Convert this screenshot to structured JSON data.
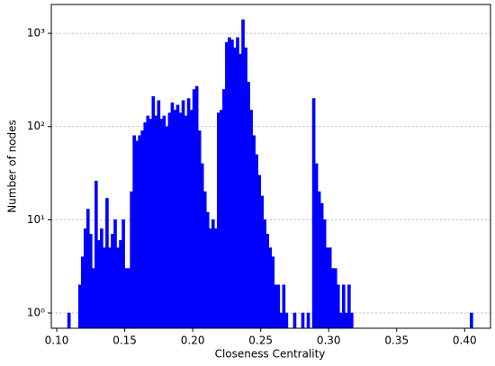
{
  "chart_data": {
    "type": "histogram",
    "xlabel": "Closeness Centrality",
    "ylabel": "Number of nodes",
    "color": "#0000ff",
    "log_y": true,
    "grid": "y-dashed",
    "bins": [
      0.108,
      0.11,
      0.112,
      0.114,
      0.116,
      0.118,
      0.12,
      0.122,
      0.124,
      0.126,
      0.128,
      0.13,
      0.132,
      0.134,
      0.136,
      0.138,
      0.14,
      0.142,
      0.144,
      0.146,
      0.148,
      0.15,
      0.152,
      0.154,
      0.156,
      0.158,
      0.16,
      0.162,
      0.164,
      0.166,
      0.168,
      0.17,
      0.172,
      0.174,
      0.176,
      0.178,
      0.18,
      0.182,
      0.184,
      0.186,
      0.188,
      0.19,
      0.192,
      0.194,
      0.196,
      0.198,
      0.2,
      0.202,
      0.204,
      0.206,
      0.208,
      0.21,
      0.212,
      0.214,
      0.216,
      0.218,
      0.22,
      0.222,
      0.224,
      0.226,
      0.228,
      0.23,
      0.232,
      0.234,
      0.236,
      0.238,
      0.24,
      0.242,
      0.244,
      0.246,
      0.248,
      0.25,
      0.252,
      0.254,
      0.256,
      0.258,
      0.26,
      0.262,
      0.264,
      0.266,
      0.268,
      0.27,
      0.272,
      0.274,
      0.276,
      0.278,
      0.28,
      0.282,
      0.284,
      0.286,
      0.288,
      0.29,
      0.292,
      0.294,
      0.296,
      0.298,
      0.3,
      0.302,
      0.304,
      0.306,
      0.308,
      0.31,
      0.312,
      0.314,
      0.316,
      0.318,
      0.32,
      0.322,
      0.324,
      0.326,
      0.328,
      0.33,
      0.332,
      0.334,
      0.336,
      0.338,
      0.34,
      0.342,
      0.344,
      0.346,
      0.348,
      0.35,
      0.352,
      0.354,
      0.356,
      0.358,
      0.36,
      0.362,
      0.364,
      0.366,
      0.368,
      0.37,
      0.372,
      0.374,
      0.376,
      0.378,
      0.38,
      0.382,
      0.384,
      0.386,
      0.388,
      0.39,
      0.392,
      0.394,
      0.396,
      0.398,
      0.4,
      0.402,
      0.404,
      0.406
    ],
    "counts": [
      1,
      null,
      null,
      null,
      2,
      4,
      8,
      13,
      7,
      3,
      26,
      6,
      8,
      5,
      17,
      5,
      7,
      10,
      5,
      6,
      10,
      3,
      3,
      20,
      80,
      70,
      80,
      90,
      110,
      130,
      120,
      210,
      130,
      190,
      120,
      130,
      100,
      140,
      180,
      150,
      170,
      140,
      190,
      130,
      200,
      150,
      250,
      270,
      90,
      40,
      20,
      12,
      8,
      10,
      8,
      140,
      150,
      250,
      800,
      900,
      850,
      700,
      900,
      600,
      1400,
      700,
      300,
      150,
      80,
      50,
      30,
      18,
      10,
      7,
      5,
      4,
      2,
      2,
      1,
      2,
      1,
      null,
      null,
      1,
      null,
      null,
      1,
      null,
      1,
      null,
      200,
      40,
      20,
      15,
      10,
      5,
      5,
      3,
      3,
      2,
      1,
      2,
      1,
      2,
      1,
      null,
      null,
      null,
      null,
      null,
      null,
      null,
      null,
      null,
      null,
      null,
      null,
      null,
      null,
      null,
      null,
      null,
      null,
      null,
      null,
      null,
      null,
      null,
      null,
      null,
      null,
      null,
      null,
      null,
      null,
      null,
      null,
      null,
      null,
      null,
      null,
      null,
      null,
      null,
      null,
      null,
      null,
      null,
      1
    ],
    "xlim": [
      0.096,
      0.419
    ],
    "ylim": [
      0.686,
      2040
    ],
    "xticks": [
      {
        "value": 0.1,
        "label": "0.10"
      },
      {
        "value": 0.15,
        "label": "0.15"
      },
      {
        "value": 0.2,
        "label": "0.20"
      },
      {
        "value": 0.25,
        "label": "0.25"
      },
      {
        "value": 0.3,
        "label": "0.30"
      },
      {
        "value": 0.35,
        "label": "0.35"
      },
      {
        "value": 0.4,
        "label": "0.40"
      }
    ],
    "yticks": [
      {
        "value": 1,
        "label": "10⁰"
      },
      {
        "value": 10,
        "label": "10¹"
      },
      {
        "value": 100,
        "label": "10²"
      },
      {
        "value": 1000,
        "label": "10³"
      }
    ]
  }
}
